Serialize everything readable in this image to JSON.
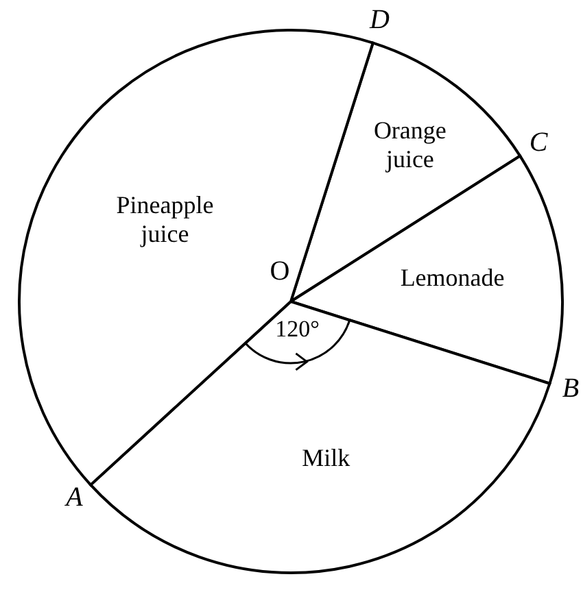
{
  "chart_data": {
    "type": "pie",
    "categories": [
      "Orange juice",
      "Lemonade",
      "Milk",
      "Pineapple juice"
    ],
    "values": [
      11.1,
      13.9,
      33.3,
      41.7
    ],
    "colors": [
      "#ffffff",
      "#ffffff",
      "#ffffff",
      "#ffffff"
    ],
    "annotations": [
      "O",
      "D",
      "C",
      "B",
      "A",
      "120°"
    ]
  }
}
